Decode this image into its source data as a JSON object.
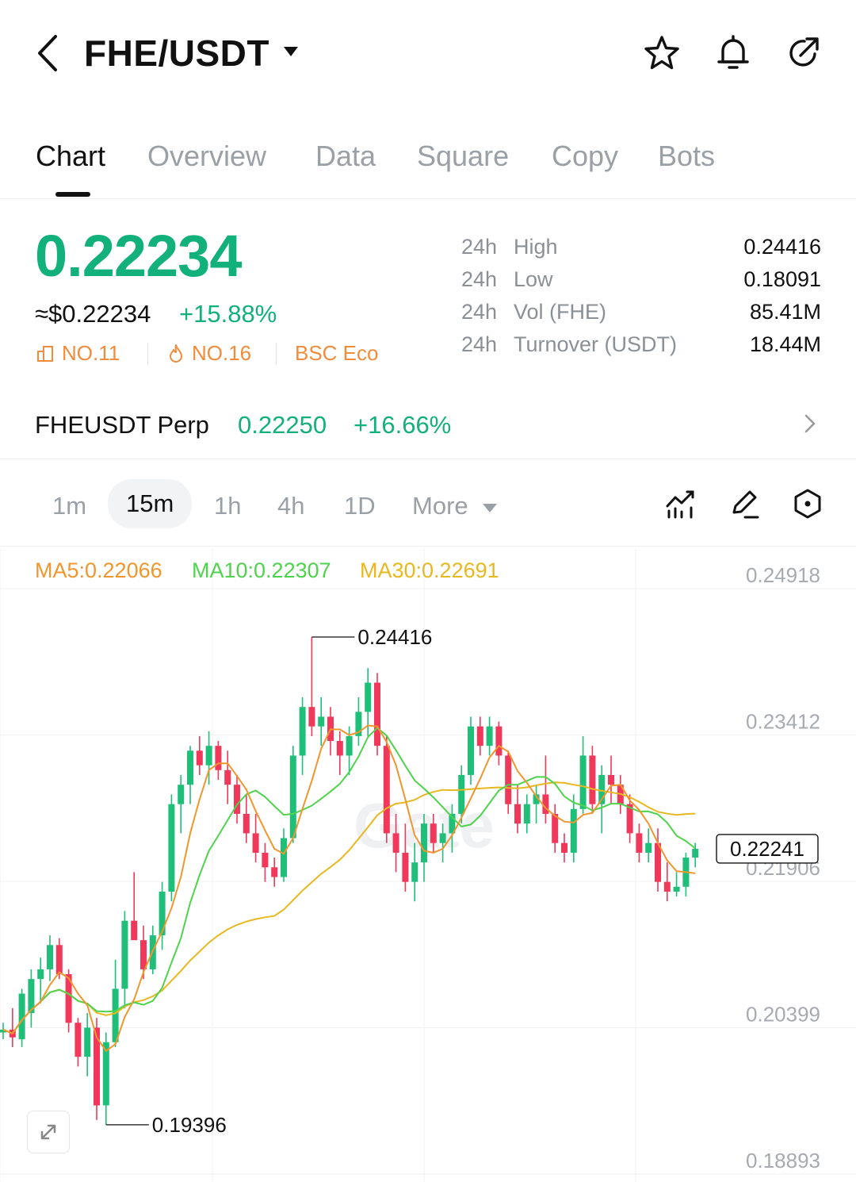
{
  "header": {
    "title": "FHE/USDT",
    "icons": [
      "back-chevron-icon",
      "caret-down-icon",
      "star-icon",
      "bell-icon",
      "share-icon"
    ]
  },
  "tabs": [
    {
      "label": "Chart",
      "active": true
    },
    {
      "label": "Overview"
    },
    {
      "label": "Data"
    },
    {
      "label": "Square"
    },
    {
      "label": "Copy"
    },
    {
      "label": "Bots"
    }
  ],
  "ticker": {
    "price": "0.22234",
    "fiat": "≈$0.22234",
    "change": "+15.88%",
    "badges": [
      {
        "icon": "rank-chart-icon",
        "label": "NO.11"
      },
      {
        "icon": "flame-icon",
        "label": "NO.16"
      },
      {
        "label": "BSC Eco"
      }
    ],
    "stats": [
      {
        "period": "24h",
        "label": "High",
        "value": "0.24416"
      },
      {
        "period": "24h",
        "label": "Low",
        "value": "0.18091"
      },
      {
        "period": "24h",
        "label": "Vol (FHE)",
        "value": "85.41M"
      },
      {
        "period": "24h",
        "label": "Turnover (USDT)",
        "value": "18.44M"
      }
    ]
  },
  "perp": {
    "name": "FHEUSDT Perp",
    "price": "0.22250",
    "change": "+16.66%"
  },
  "intervals": [
    {
      "label": "1m"
    },
    {
      "label": "15m",
      "active": true
    },
    {
      "label": "1h"
    },
    {
      "label": "4h"
    },
    {
      "label": "1D"
    },
    {
      "label": "More"
    }
  ],
  "toolbar_icons": [
    "indicator-icon",
    "pencil-icon",
    "settings-hex-icon"
  ],
  "chart": {
    "ma": [
      {
        "label": "MA5:0.22066",
        "color": "#f0962e"
      },
      {
        "label": "MA10:0.22307",
        "color": "#4fd34c"
      },
      {
        "label": "MA30:0.22691",
        "color": "#e8b820"
      }
    ],
    "y_ticks": [
      "0.24918",
      "0.23412",
      "0.21906",
      "0.20399",
      "0.18893"
    ],
    "high_label": "0.24416",
    "low_label": "0.19396",
    "last_price_label": "0.22241",
    "watermark": "Gate",
    "up_color": "#1fbf7a",
    "down_color": "#f0385a"
  },
  "chart_data": {
    "type": "candlestick",
    "y_range": [
      0.18893,
      0.24918
    ],
    "y_ticks": [
      0.24918,
      0.23412,
      0.21906,
      0.20399,
      0.18893
    ],
    "marked_high": 0.24416,
    "marked_low": 0.19396,
    "last": 0.22241,
    "indicators": [
      "MA5",
      "MA10",
      "MA30"
    ],
    "ohlc": [
      [
        0.2035,
        0.2045,
        0.2028,
        0.2038
      ],
      [
        0.2038,
        0.206,
        0.202,
        0.203
      ],
      [
        0.2028,
        0.208,
        0.202,
        0.2075
      ],
      [
        0.2055,
        0.21,
        0.204,
        0.209
      ],
      [
        0.209,
        0.2112,
        0.2065,
        0.21
      ],
      [
        0.21,
        0.2135,
        0.2088,
        0.2125
      ],
      [
        0.2125,
        0.2132,
        0.209,
        0.2095
      ],
      [
        0.2095,
        0.21,
        0.2035,
        0.2045
      ],
      [
        0.2045,
        0.205,
        0.2,
        0.201
      ],
      [
        0.201,
        0.2055,
        0.199,
        0.204
      ],
      [
        0.204,
        0.205,
        0.1945,
        0.196
      ],
      [
        0.196,
        0.2035,
        0.194,
        0.2025
      ],
      [
        0.2025,
        0.211,
        0.202,
        0.208
      ],
      [
        0.208,
        0.216,
        0.206,
        0.215
      ],
      [
        0.215,
        0.22,
        0.2135,
        0.213
      ],
      [
        0.213,
        0.2145,
        0.209,
        0.21
      ],
      [
        0.21,
        0.2145,
        0.2095,
        0.2135
      ],
      [
        0.2135,
        0.219,
        0.212,
        0.218
      ],
      [
        0.218,
        0.228,
        0.217,
        0.227
      ],
      [
        0.227,
        0.23,
        0.224,
        0.229
      ],
      [
        0.229,
        0.233,
        0.227,
        0.2325
      ],
      [
        0.2325,
        0.234,
        0.23,
        0.231
      ],
      [
        0.231,
        0.2345,
        0.229,
        0.233
      ],
      [
        0.233,
        0.2335,
        0.2295,
        0.2305
      ],
      [
        0.2305,
        0.2325,
        0.227,
        0.229
      ],
      [
        0.229,
        0.23,
        0.225,
        0.226
      ],
      [
        0.226,
        0.228,
        0.223,
        0.224
      ],
      [
        0.224,
        0.226,
        0.221,
        0.222
      ],
      [
        0.222,
        0.223,
        0.219,
        0.2205
      ],
      [
        0.2205,
        0.2215,
        0.2185,
        0.2195
      ],
      [
        0.2195,
        0.2245,
        0.219,
        0.2235
      ],
      [
        0.2235,
        0.233,
        0.223,
        0.232
      ],
      [
        0.232,
        0.238,
        0.23,
        0.237
      ],
      [
        0.237,
        0.2442,
        0.234,
        0.235
      ],
      [
        0.235,
        0.238,
        0.233,
        0.236
      ],
      [
        0.236,
        0.237,
        0.232,
        0.2335
      ],
      [
        0.2335,
        0.2345,
        0.23,
        0.232
      ],
      [
        0.232,
        0.235,
        0.23,
        0.234
      ],
      [
        0.234,
        0.238,
        0.233,
        0.2365
      ],
      [
        0.2365,
        0.241,
        0.234,
        0.2395
      ],
      [
        0.2395,
        0.2405,
        0.232,
        0.233
      ],
      [
        0.233,
        0.234,
        0.223,
        0.224
      ],
      [
        0.224,
        0.226,
        0.22,
        0.222
      ],
      [
        0.222,
        0.225,
        0.218,
        0.219
      ],
      [
        0.219,
        0.223,
        0.217,
        0.221
      ],
      [
        0.221,
        0.226,
        0.219,
        0.225
      ],
      [
        0.225,
        0.226,
        0.222,
        0.223
      ],
      [
        0.223,
        0.225,
        0.221,
        0.224
      ],
      [
        0.224,
        0.227,
        0.222,
        0.226
      ],
      [
        0.226,
        0.231,
        0.225,
        0.23
      ],
      [
        0.23,
        0.236,
        0.229,
        0.235
      ],
      [
        0.235,
        0.236,
        0.232,
        0.233
      ],
      [
        0.233,
        0.236,
        0.232,
        0.235
      ],
      [
        0.235,
        0.2355,
        0.231,
        0.232
      ],
      [
        0.232,
        0.2325,
        0.226,
        0.227
      ],
      [
        0.227,
        0.229,
        0.224,
        0.225
      ],
      [
        0.225,
        0.228,
        0.224,
        0.227
      ],
      [
        0.227,
        0.229,
        0.225,
        0.228
      ],
      [
        0.228,
        0.232,
        0.225,
        0.226
      ],
      [
        0.226,
        0.227,
        0.222,
        0.223
      ],
      [
        0.223,
        0.224,
        0.221,
        0.222
      ],
      [
        0.222,
        0.228,
        0.221,
        0.2265
      ],
      [
        0.2265,
        0.234,
        0.226,
        0.232
      ],
      [
        0.232,
        0.233,
        0.226,
        0.227
      ],
      [
        0.227,
        0.231,
        0.224,
        0.23
      ],
      [
        0.23,
        0.232,
        0.227,
        0.229
      ],
      [
        0.229,
        0.23,
        0.226,
        0.227
      ],
      [
        0.227,
        0.228,
        0.223,
        0.224
      ],
      [
        0.224,
        0.225,
        0.221,
        0.222
      ],
      [
        0.222,
        0.2245,
        0.221,
        0.223
      ],
      [
        0.223,
        0.2245,
        0.218,
        0.219
      ],
      [
        0.219,
        0.221,
        0.217,
        0.218
      ],
      [
        0.218,
        0.22,
        0.2175,
        0.2185
      ],
      [
        0.2185,
        0.222,
        0.2175,
        0.2215
      ],
      [
        0.2215,
        0.223,
        0.2205,
        0.2224
      ]
    ]
  }
}
